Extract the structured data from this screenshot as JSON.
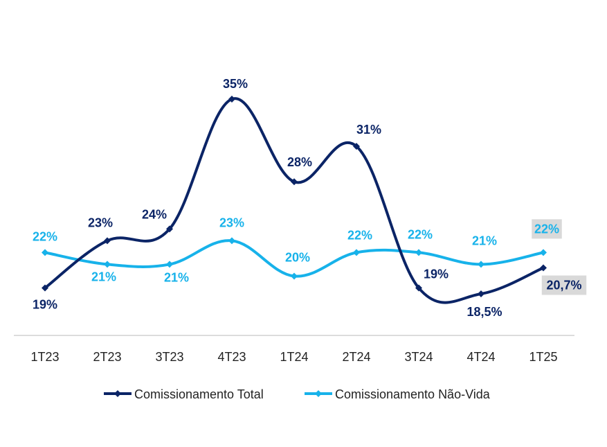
{
  "chart_data": {
    "type": "line",
    "categories": [
      "1T23",
      "2T23",
      "3T23",
      "4T23",
      "1T24",
      "2T24",
      "3T24",
      "4T24",
      "1T25"
    ],
    "series": [
      {
        "name": "Comissionamento Total",
        "color": "#0b2466",
        "values": [
          19,
          23,
          24,
          35,
          28,
          31,
          19,
          18.5,
          20.7
        ],
        "labels": [
          "19%",
          "23%",
          "24%",
          "35%",
          "28%",
          "31%",
          "19%",
          "18,5%",
          "20,7%"
        ]
      },
      {
        "name": "Comissionamento Não-Vida",
        "color": "#17b2ea",
        "values": [
          22,
          21,
          21,
          23,
          20,
          22,
          22,
          21,
          22
        ],
        "labels": [
          "22%",
          "21%",
          "21%",
          "23%",
          "20%",
          "22%",
          "22%",
          "21%",
          "22%"
        ]
      }
    ],
    "highlight_last_label": true,
    "highlight_color": "#d9d9d9",
    "legend": "bottom",
    "grid": false,
    "y_axis_visible": false
  }
}
